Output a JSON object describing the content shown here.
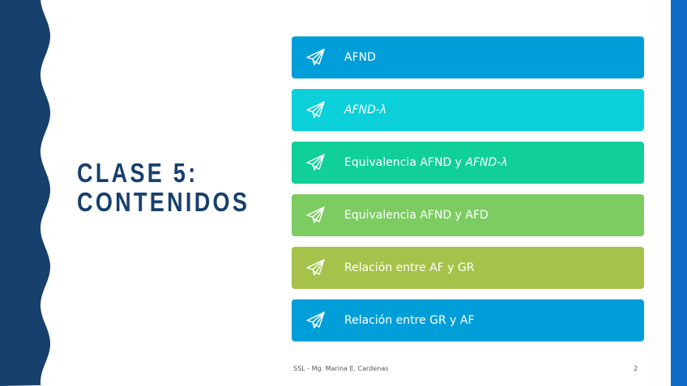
{
  "title": {
    "line1": "CLASE 5:",
    "line2": "CONTENIDOS"
  },
  "items": [
    {
      "label": "AFND",
      "italic": "",
      "color": "#009ed8"
    },
    {
      "label": "",
      "italic": "AFND-λ",
      "color": "#0bcfd9"
    },
    {
      "label": "Equivalencia AFND y ",
      "italic": "AFND-λ",
      "color": "#10cf98"
    },
    {
      "label": "Equivalencia AFND y AFD",
      "italic": "",
      "color": "#7ccc62"
    },
    {
      "label": "Relación entre AF y GR",
      "italic": "",
      "color": "#a6c24a"
    },
    {
      "label": "Relación entre GR y AF",
      "italic": "",
      "color": "#009ed8"
    }
  ],
  "icon": "paper-plane-icon",
  "footer": {
    "author": "SSL - Mg. Marina E. Cardenas",
    "page": "2"
  },
  "colors": {
    "wave": "#17406c",
    "rightbar": "#0e6cc6"
  }
}
